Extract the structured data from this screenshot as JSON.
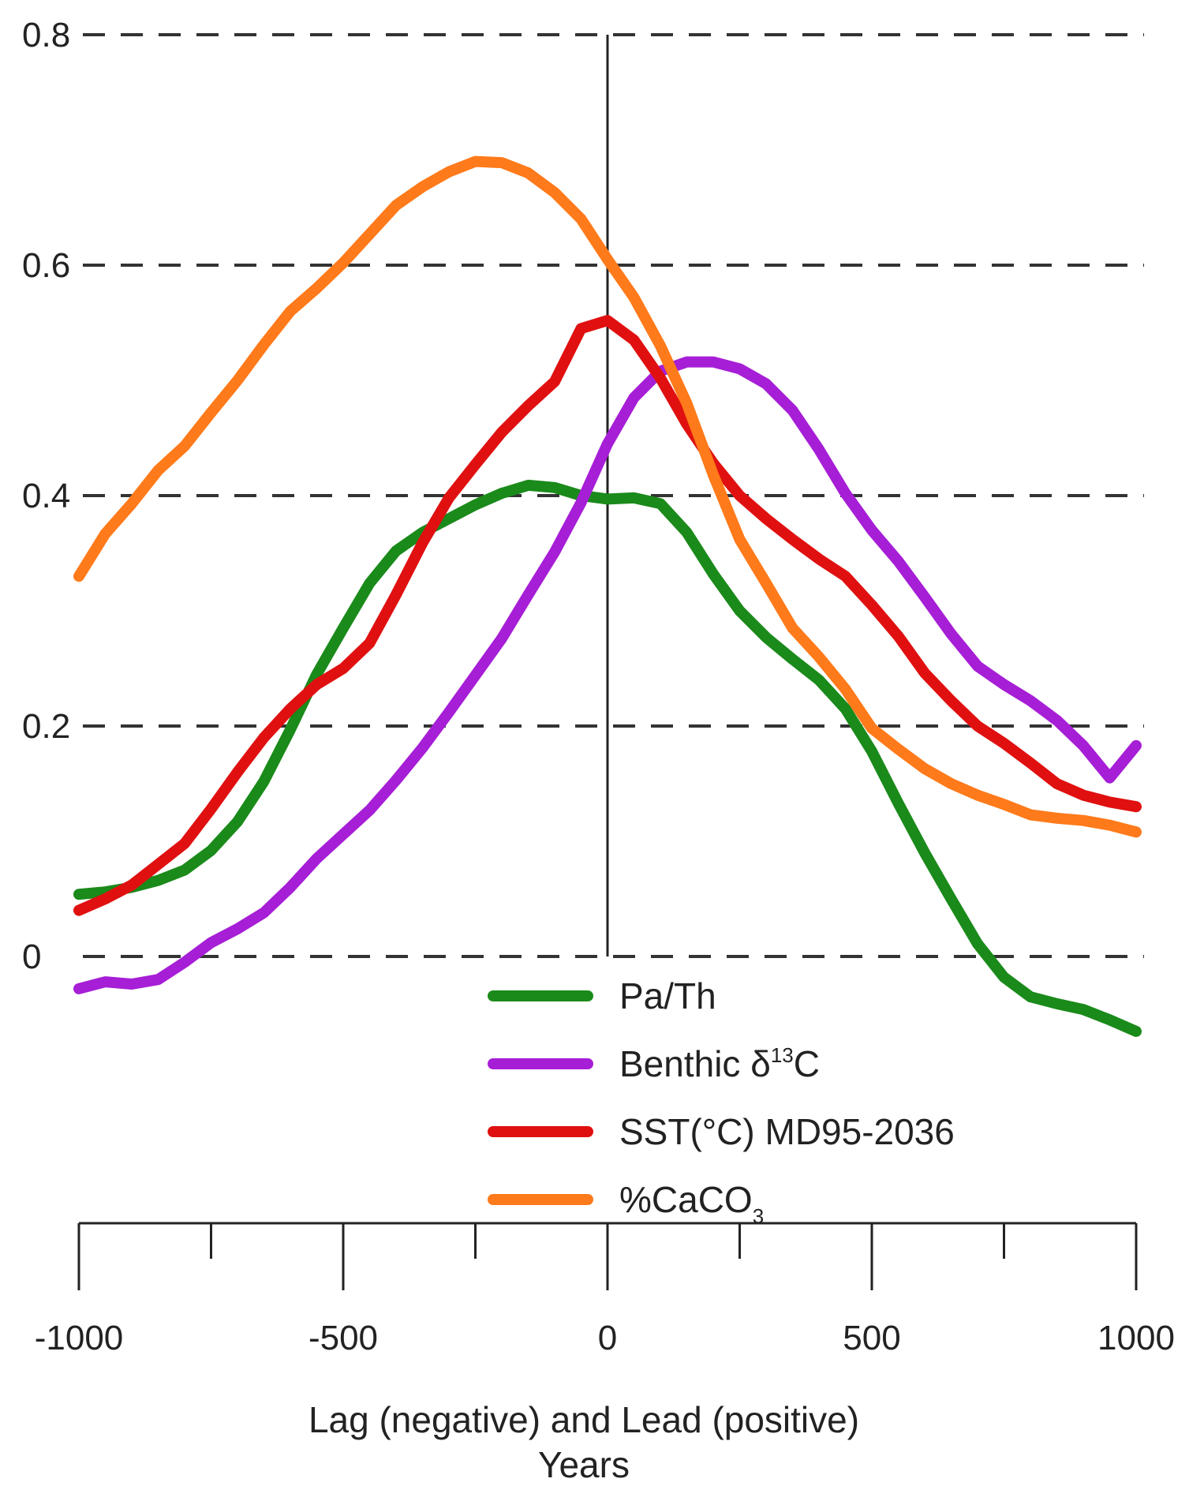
{
  "chart_data": {
    "type": "line",
    "title": "",
    "xlabel": "Lag (negative) and Lead (positive)",
    "xlabel_line2": "Years",
    "ylabel": "",
    "xlim": [
      -1000,
      1000
    ],
    "ylim": [
      0,
      0.8
    ],
    "x_ticks": [
      -1000,
      -500,
      0,
      500,
      1000
    ],
    "x_tick_labels": [
      "-1000",
      "-500",
      "0",
      "500",
      "1000"
    ],
    "x_minor_ticks": [
      -750,
      -250,
      250,
      750
    ],
    "y_ticks": [
      0,
      0.2,
      0.4,
      0.6,
      0.8
    ],
    "y_tick_labels": [
      "0",
      "0.2",
      "0.4",
      "0.6",
      "0.8"
    ],
    "grid": "horizontal dashed",
    "zero_line_x": 0,
    "legend_position": "bottom-center",
    "series": [
      {
        "name": "Pa/Th",
        "legend_label": "Pa/Th",
        "color": "#1a8a1a",
        "x": [
          -1000,
          -950,
          -900,
          -850,
          -800,
          -750,
          -700,
          -650,
          -600,
          -550,
          -500,
          -450,
          -400,
          -350,
          -300,
          -250,
          -200,
          -150,
          -100,
          -50,
          0,
          50,
          100,
          150,
          200,
          250,
          300,
          350,
          400,
          450,
          500,
          550,
          600,
          650,
          700,
          750,
          800,
          850,
          900,
          950,
          1000
        ],
        "y": [
          0.054,
          0.056,
          0.06,
          0.066,
          0.075,
          0.092,
          0.117,
          0.152,
          0.197,
          0.245,
          0.285,
          0.324,
          0.352,
          0.368,
          0.38,
          0.392,
          0.402,
          0.409,
          0.407,
          0.4,
          0.397,
          0.398,
          0.393,
          0.368,
          0.332,
          0.3,
          0.277,
          0.258,
          0.24,
          0.215,
          0.178,
          0.133,
          0.09,
          0.05,
          0.011,
          -0.018,
          -0.035,
          -0.041,
          -0.046,
          -0.055,
          -0.065
        ]
      },
      {
        "name": "Benthic δ13C",
        "legend_label": "Benthic δ",
        "legend_superscript": "13",
        "legend_suffix": "C",
        "color": "#a61ed6",
        "x": [
          -1000,
          -950,
          -900,
          -850,
          -800,
          -750,
          -700,
          -650,
          -600,
          -550,
          -500,
          -450,
          -400,
          -350,
          -300,
          -250,
          -200,
          -150,
          -100,
          -50,
          0,
          50,
          100,
          150,
          200,
          250,
          300,
          350,
          400,
          450,
          500,
          550,
          600,
          650,
          700,
          750,
          800,
          850,
          900,
          950,
          1000
        ],
        "y": [
          -0.028,
          -0.022,
          -0.024,
          -0.02,
          -0.005,
          0.012,
          0.024,
          0.038,
          0.06,
          0.085,
          0.106,
          0.127,
          0.153,
          0.181,
          0.212,
          0.244,
          0.276,
          0.314,
          0.351,
          0.394,
          0.445,
          0.485,
          0.508,
          0.516,
          0.516,
          0.51,
          0.497,
          0.474,
          0.44,
          0.402,
          0.37,
          0.343,
          0.312,
          0.28,
          0.252,
          0.236,
          0.222,
          0.205,
          0.183,
          0.155,
          0.183
        ]
      },
      {
        "name": "SST(°C) MD95-2036",
        "legend_label": "SST(°C) MD95-2036",
        "color": "#e01010",
        "x": [
          -1000,
          -950,
          -900,
          -850,
          -800,
          -750,
          -700,
          -650,
          -600,
          -550,
          -500,
          -450,
          -400,
          -350,
          -300,
          -250,
          -200,
          -150,
          -100,
          -50,
          0,
          50,
          100,
          150,
          200,
          250,
          300,
          350,
          400,
          450,
          500,
          550,
          600,
          650,
          700,
          750,
          800,
          850,
          900,
          950,
          1000
        ],
        "y": [
          0.04,
          0.05,
          0.062,
          0.08,
          0.098,
          0.128,
          0.16,
          0.19,
          0.215,
          0.236,
          0.25,
          0.272,
          0.314,
          0.359,
          0.398,
          0.427,
          0.455,
          0.478,
          0.499,
          0.545,
          0.552,
          0.535,
          0.502,
          0.462,
          0.428,
          0.4,
          0.38,
          0.362,
          0.345,
          0.33,
          0.305,
          0.278,
          0.246,
          0.222,
          0.2,
          0.185,
          0.168,
          0.15,
          0.14,
          0.134,
          0.13
        ]
      },
      {
        "name": "%CaCO3",
        "legend_label": "%CaCO",
        "legend_subscript": "3",
        "color": "#ff7a1a",
        "x": [
          -1000,
          -950,
          -900,
          -850,
          -800,
          -750,
          -700,
          -650,
          -600,
          -550,
          -500,
          -450,
          -400,
          -350,
          -300,
          -250,
          -200,
          -150,
          -100,
          -50,
          0,
          50,
          100,
          150,
          200,
          250,
          300,
          350,
          400,
          450,
          500,
          550,
          600,
          650,
          700,
          750,
          800,
          850,
          900,
          950,
          1000
        ],
        "y": [
          0.33,
          0.367,
          0.393,
          0.422,
          0.443,
          0.472,
          0.5,
          0.531,
          0.56,
          0.58,
          0.602,
          0.627,
          0.652,
          0.668,
          0.681,
          0.69,
          0.689,
          0.68,
          0.663,
          0.64,
          0.605,
          0.572,
          0.53,
          0.48,
          0.418,
          0.362,
          0.324,
          0.285,
          0.26,
          0.232,
          0.198,
          0.18,
          0.163,
          0.15,
          0.14,
          0.132,
          0.123,
          0.12,
          0.118,
          0.114,
          0.108
        ]
      }
    ]
  }
}
